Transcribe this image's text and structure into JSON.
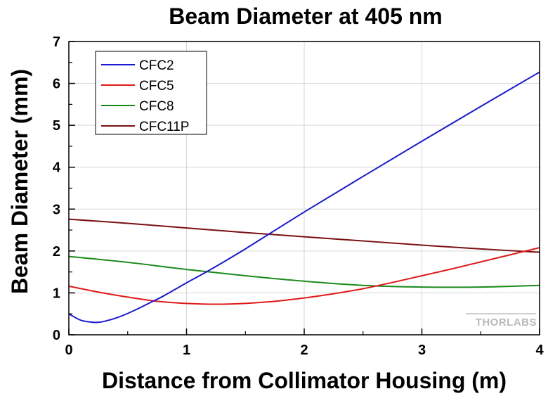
{
  "chart_data": {
    "type": "line",
    "title": "Beam Diameter at 405 nm",
    "xlabel": "Distance from Collimator Housing (m)",
    "ylabel": "Beam Diameter (mm)",
    "xlim": [
      0,
      4
    ],
    "ylim": [
      0,
      7
    ],
    "xticks": [
      "0",
      "1",
      "2",
      "3",
      "4"
    ],
    "yticks": [
      "0",
      "1",
      "2",
      "3",
      "4",
      "5",
      "6",
      "7"
    ],
    "grid": true,
    "legend_position": "top-left",
    "watermark": "THORLABS",
    "series": [
      {
        "name": "CFC2",
        "color": "#1a1ad6",
        "x": [
          0,
          0.1,
          0.2,
          0.25,
          0.3,
          0.4,
          0.5,
          0.6,
          0.7,
          0.8,
          1.0,
          1.2,
          1.5,
          2.0,
          2.5,
          3.0,
          3.5,
          4.0
        ],
        "y": [
          0.5,
          0.35,
          0.3,
          0.3,
          0.32,
          0.4,
          0.51,
          0.64,
          0.78,
          0.92,
          1.24,
          1.55,
          2.05,
          2.93,
          3.78,
          4.62,
          5.45,
          6.27
        ]
      },
      {
        "name": "CFC5",
        "color": "#e01818",
        "x": [
          0,
          0.25,
          0.5,
          0.75,
          1.0,
          1.25,
          1.5,
          1.75,
          2.0,
          2.25,
          2.5,
          2.75,
          3.0,
          3.25,
          3.5,
          3.75,
          4.0
        ],
        "y": [
          1.16,
          1.02,
          0.9,
          0.8,
          0.75,
          0.73,
          0.75,
          0.8,
          0.88,
          0.98,
          1.1,
          1.25,
          1.41,
          1.57,
          1.74,
          1.91,
          2.08
        ]
      },
      {
        "name": "CFC8",
        "color": "#1a8a1a",
        "x": [
          0,
          0.5,
          1.0,
          1.5,
          2.0,
          2.5,
          3.0,
          3.5,
          4.0
        ],
        "y": [
          1.87,
          1.73,
          1.56,
          1.41,
          1.28,
          1.18,
          1.14,
          1.14,
          1.18
        ]
      },
      {
        "name": "CFC11P",
        "color": "#7a1010",
        "x": [
          0,
          0.5,
          1.0,
          1.5,
          2.0,
          2.5,
          3.0,
          3.5,
          4.0
        ],
        "y": [
          2.76,
          2.66,
          2.55,
          2.44,
          2.34,
          2.24,
          2.14,
          2.05,
          1.97
        ]
      }
    ]
  }
}
